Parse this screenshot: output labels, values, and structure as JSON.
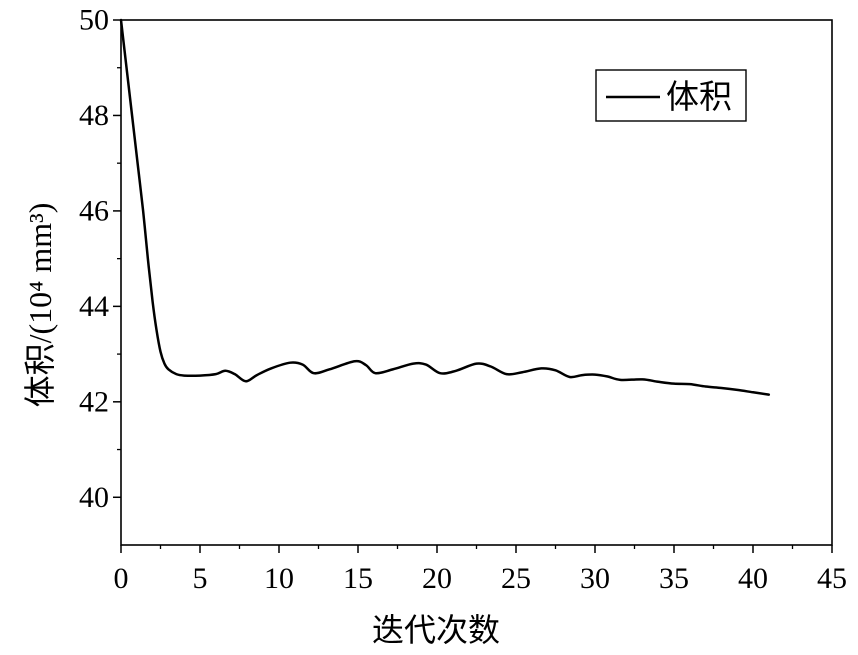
{
  "chart_data": {
    "type": "line",
    "xlabel": "迭代次数",
    "ylabel": "体积/(10⁴ mm³)",
    "xlim": [
      0,
      45
    ],
    "ylim": [
      39,
      50
    ],
    "x_ticks": [
      0,
      5,
      10,
      15,
      20,
      25,
      30,
      35,
      40,
      45
    ],
    "y_ticks": [
      40,
      42,
      44,
      46,
      48,
      50
    ],
    "grid": false,
    "legend": {
      "placement": "top-right"
    },
    "series": [
      {
        "name": "体积",
        "color": "#000000",
        "x": [
          0,
          0.35,
          0.7,
          1.05,
          1.4,
          1.7,
          2.0,
          2.25,
          2.5,
          2.75,
          3.0,
          3.5,
          4.0,
          5.0,
          6.0,
          6.6,
          7.2,
          7.9,
          8.6,
          9.5,
          10.7,
          11.5,
          12.2,
          13.2,
          14.8,
          15.5,
          16.1,
          17.2,
          18.5,
          19.3,
          20.2,
          21.2,
          22.5,
          23.4,
          24.4,
          25.4,
          26.6,
          27.5,
          28.4,
          29.2,
          30.0,
          30.8,
          31.6,
          33.0,
          34.0,
          35.0,
          36.0,
          37.0,
          38.0,
          39.0,
          40.0,
          41.0
        ],
        "y": [
          50.0,
          49.0,
          48.0,
          47.0,
          46.0,
          45.0,
          44.1,
          43.5,
          43.05,
          42.8,
          42.68,
          42.58,
          42.55,
          42.55,
          42.58,
          42.65,
          42.58,
          42.43,
          42.56,
          42.7,
          42.82,
          42.78,
          42.6,
          42.68,
          42.85,
          42.77,
          42.6,
          42.68,
          42.8,
          42.78,
          42.6,
          42.65,
          42.8,
          42.74,
          42.58,
          42.62,
          42.7,
          42.66,
          42.52,
          42.56,
          42.57,
          42.53,
          42.46,
          42.47,
          42.42,
          42.38,
          42.37,
          42.32,
          42.29,
          42.25,
          42.2,
          42.15
        ]
      }
    ]
  }
}
